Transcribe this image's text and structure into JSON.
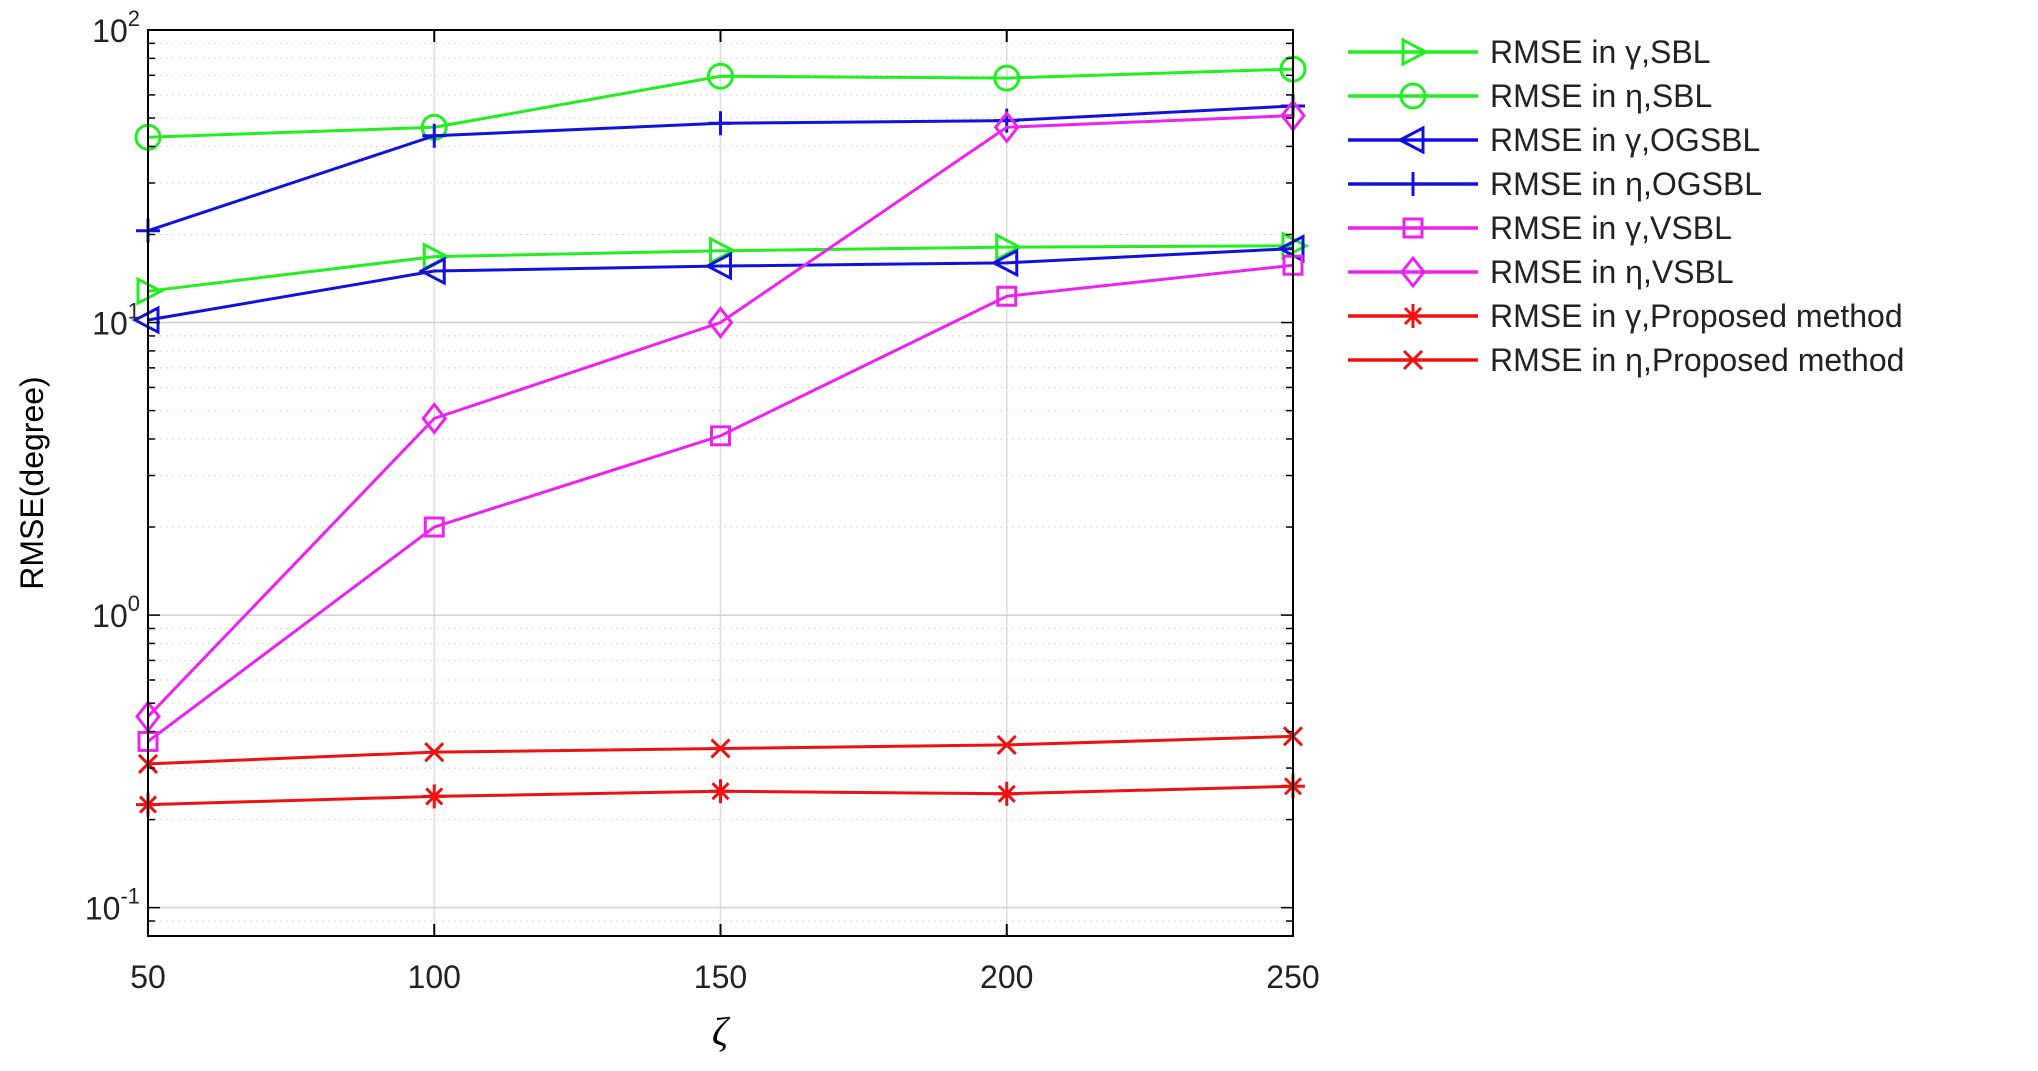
{
  "chart_data": {
    "type": "line",
    "xlabel": "ζ",
    "ylabel": "RMSE(degree)",
    "x": [
      50,
      100,
      150,
      200,
      250
    ],
    "xlim": [
      50,
      250
    ],
    "ylim": [
      0.08,
      100
    ],
    "yscale": "log",
    "grid": true,
    "legend_position": "outside-right",
    "x_ticks": [
      "50",
      "100",
      "150",
      "200",
      "250"
    ],
    "y_ticks": [
      {
        "base": "10",
        "exp": "2",
        "value": 100
      },
      {
        "base": "10",
        "exp": "1",
        "value": 10
      },
      {
        "base": "10",
        "exp": "0",
        "value": 1
      },
      {
        "base": "10",
        "exp": "-1",
        "value": 0.1
      }
    ],
    "series": [
      {
        "name": "RMSE in γ,SBL",
        "color": "#22ee22",
        "marker": "triangle-right",
        "values": [
          12.8,
          16.8,
          17.6,
          18.1,
          18.3
        ]
      },
      {
        "name": "RMSE in η,SBL",
        "color": "#22ee22",
        "marker": "circle",
        "values": [
          43,
          46.5,
          69.5,
          68.5,
          73.5
        ]
      },
      {
        "name": "RMSE in γ,OGSBL",
        "color": "#1111dd",
        "marker": "triangle-left",
        "values": [
          10.2,
          15,
          15.6,
          16,
          17.9
        ]
      },
      {
        "name": "RMSE in η,OGSBL",
        "color": "#1111dd",
        "marker": "plus",
        "values": [
          20.6,
          43.5,
          48,
          49,
          55
        ]
      },
      {
        "name": "RMSE in γ,VSBL",
        "color": "#ee22ee",
        "marker": "square",
        "values": [
          0.37,
          2.0,
          4.1,
          12.3,
          15.7
        ]
      },
      {
        "name": "RMSE in η,VSBL",
        "color": "#ee22ee",
        "marker": "diamond",
        "values": [
          0.45,
          4.7,
          10,
          46.5,
          51
        ]
      },
      {
        "name": "RMSE in γ,Proposed method",
        "color": "#ee1111",
        "marker": "asterisk",
        "values": [
          0.225,
          0.24,
          0.25,
          0.245,
          0.26
        ]
      },
      {
        "name": "RMSE in η,Proposed method",
        "color": "#ee1111",
        "marker": "cross",
        "values": [
          0.31,
          0.34,
          0.35,
          0.36,
          0.385
        ]
      }
    ]
  }
}
